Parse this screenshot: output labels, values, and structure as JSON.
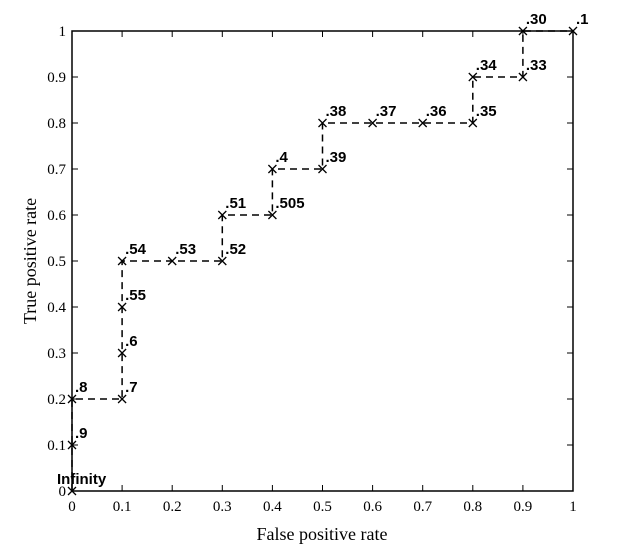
{
  "chart_data": {
    "type": "line",
    "xlabel": "False positive rate",
    "ylabel": "True positive rate",
    "x": [
      0,
      0,
      0,
      0.1,
      0.1,
      0.1,
      0.1,
      0.2,
      0.3,
      0.3,
      0.4,
      0.4,
      0.5,
      0.5,
      0.6,
      0.7,
      0.8,
      0.8,
      0.9,
      0.9,
      1
    ],
    "series": [
      {
        "color": "#000000",
        "values": [
          0,
          0.1,
          0.2,
          0.2,
          0.3,
          0.4,
          0.5,
          0.5,
          0.5,
          0.6,
          0.6,
          0.7,
          0.7,
          0.8,
          0.8,
          0.8,
          0.8,
          0.9,
          0.9,
          1,
          1
        ],
        "point_labels": [
          "Infinity",
          ".9",
          ".8",
          ".7",
          ".6",
          ".55",
          ".54",
          ".53",
          ".52",
          ".51",
          ".505",
          ".4",
          ".39",
          ".38",
          ".37",
          ".36",
          ".35",
          ".34",
          ".33",
          ".30",
          ".1"
        ]
      }
    ],
    "xlim": [
      0,
      1
    ],
    "ylim": [
      0,
      1
    ],
    "xticks": [
      0,
      0.1,
      0.2,
      0.3,
      0.4,
      0.5,
      0.6,
      0.7,
      0.8,
      0.9,
      1
    ],
    "yticks": [
      0,
      0.1,
      0.2,
      0.3,
      0.4,
      0.5,
      0.6,
      0.7,
      0.8,
      0.9,
      1
    ],
    "line_style": "dashed",
    "marker": "x"
  }
}
